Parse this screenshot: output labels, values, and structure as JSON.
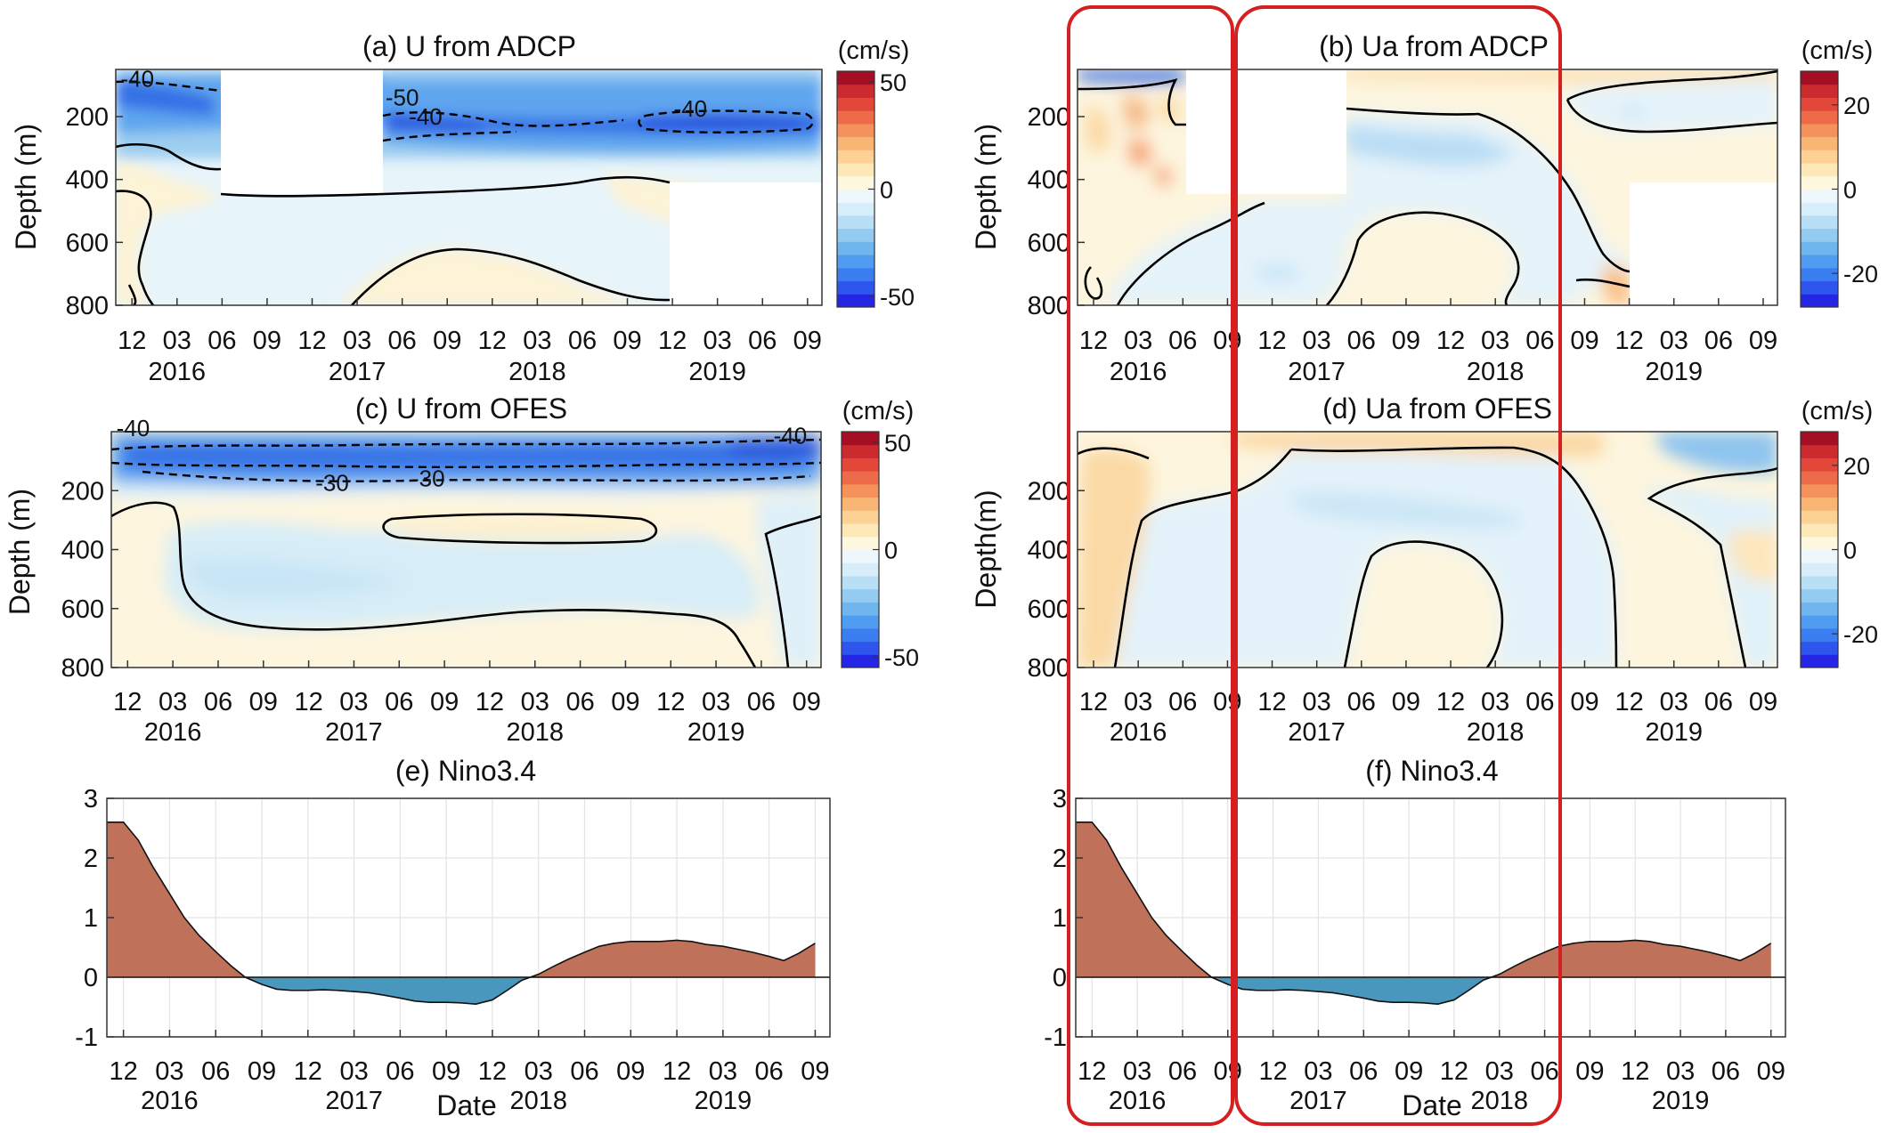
{
  "colors": {
    "positive_fill": "#c0715a",
    "negative_fill": "#4a97bd",
    "highlight_box": "#d42020",
    "zero_contour": "#000000",
    "colormap": [
      "#2525e6",
      "#2f55ef",
      "#3b7ef2",
      "#4f9cf0",
      "#6fb5ee",
      "#93cbf2",
      "#b8dff6",
      "#d7eefa",
      "#eef8fc",
      "#fdf8df",
      "#fde8b8",
      "#fcd193",
      "#f9b574",
      "#f5925c",
      "#ee6b49",
      "#e2473a",
      "#cb2a2f",
      "#a50f26"
    ]
  },
  "months_ticks": [
    "12",
    "03",
    "06",
    "09",
    "12",
    "03",
    "06",
    "09",
    "12",
    "03",
    "06",
    "09",
    "12",
    "03",
    "06",
    "09"
  ],
  "year_labels": [
    "2016",
    "2017",
    "2018",
    "2019"
  ],
  "shared_xlabel": "Date",
  "chart_data": [
    {
      "id": "a",
      "type": "heatmap",
      "title": "(a) U from ADCP",
      "ylabel": "Depth (m)",
      "yticks": [
        200,
        400,
        600,
        800
      ],
      "ylim": [
        50,
        800
      ],
      "colorbar_unit": "(cm/s)",
      "colorbar_ticks": [
        50,
        0,
        -50
      ],
      "colorbar_range": [
        -55,
        55
      ],
      "contour_labels": [
        {
          "text": "-40",
          "x": 2015.95,
          "depth": 105
        },
        {
          "text": "-50",
          "x": 2017.42,
          "depth": 165
        },
        {
          "text": "-40",
          "x": 2017.55,
          "depth": 225
        },
        {
          "text": "-40",
          "x": 2019.02,
          "depth": 200
        }
      ]
    },
    {
      "id": "b",
      "type": "heatmap",
      "title": "(b) Ua from ADCP",
      "ylabel": "Depth (m)",
      "yticks": [
        200,
        400,
        600,
        800
      ],
      "ylim": [
        50,
        800
      ],
      "colorbar_unit": "(cm/s)",
      "colorbar_ticks": [
        20,
        0,
        -20
      ],
      "colorbar_range": [
        -28,
        28
      ],
      "contour_labels": []
    },
    {
      "id": "c",
      "type": "heatmap",
      "title": "(c) U from OFES",
      "ylabel": "Depth (m)",
      "yticks": [
        200,
        400,
        600,
        800
      ],
      "ylim": [
        0,
        800
      ],
      "colorbar_unit": "(cm/s)",
      "colorbar_ticks": [
        50,
        0,
        -50
      ],
      "colorbar_range": [
        -55,
        55
      ],
      "contour_labels": [
        {
          "text": "-40",
          "x": 2015.95,
          "depth": 15
        },
        {
          "text": "-30",
          "x": 2017.05,
          "depth": 200
        },
        {
          "text": "-30",
          "x": 2017.58,
          "depth": 185
        },
        {
          "text": "-40",
          "x": 2019.58,
          "depth": 40
        }
      ]
    },
    {
      "id": "d",
      "type": "heatmap",
      "title": "(d) Ua from OFES",
      "ylabel": "Depth(m)",
      "yticks": [
        200,
        400,
        600,
        800
      ],
      "ylim": [
        0,
        800
      ],
      "colorbar_unit": "(cm/s)",
      "colorbar_ticks": [
        20,
        0,
        -20
      ],
      "colorbar_range": [
        -28,
        28
      ],
      "contour_labels": []
    },
    {
      "id": "e",
      "type": "area",
      "title": "(e) Nino3.4",
      "yticks": [
        3,
        2,
        1,
        0,
        -1
      ],
      "ylim": [
        -1,
        3
      ],
      "grid": true,
      "x": [
        2015.83,
        2015.92,
        2016.0,
        2016.08,
        2016.17,
        2016.25,
        2016.33,
        2016.42,
        2016.5,
        2016.58,
        2016.67,
        2016.75,
        2016.83,
        2016.92,
        2017.0,
        2017.08,
        2017.17,
        2017.25,
        2017.33,
        2017.42,
        2017.5,
        2017.58,
        2017.67,
        2017.75,
        2017.83,
        2017.92,
        2018.0,
        2018.08,
        2018.17,
        2018.25,
        2018.33,
        2018.42,
        2018.5,
        2018.58,
        2018.67,
        2018.75,
        2018.83,
        2018.92,
        2019.0,
        2019.08,
        2019.17,
        2019.25,
        2019.33,
        2019.42,
        2019.5,
        2019.58,
        2019.67
      ],
      "values": [
        2.6,
        2.6,
        2.3,
        1.85,
        1.4,
        1.0,
        0.7,
        0.43,
        0.2,
        0.0,
        -0.12,
        -0.2,
        -0.22,
        -0.22,
        -0.21,
        -0.22,
        -0.24,
        -0.26,
        -0.3,
        -0.35,
        -0.4,
        -0.42,
        -0.42,
        -0.43,
        -0.45,
        -0.38,
        -0.22,
        -0.05,
        0.05,
        0.18,
        0.3,
        0.42,
        0.52,
        0.57,
        0.6,
        0.6,
        0.6,
        0.62,
        0.6,
        0.55,
        0.52,
        0.47,
        0.42,
        0.35,
        0.28,
        0.4,
        0.57
      ]
    },
    {
      "id": "f",
      "type": "area",
      "title": "(f) Nino3.4",
      "yticks": [
        3,
        2,
        1,
        0,
        -1
      ],
      "ylim": [
        -1,
        3
      ],
      "grid": true,
      "x": [
        2015.83,
        2015.92,
        2016.0,
        2016.08,
        2016.17,
        2016.25,
        2016.33,
        2016.42,
        2016.5,
        2016.58,
        2016.67,
        2016.75,
        2016.83,
        2016.92,
        2017.0,
        2017.08,
        2017.17,
        2017.25,
        2017.33,
        2017.42,
        2017.5,
        2017.58,
        2017.67,
        2017.75,
        2017.83,
        2017.92,
        2018.0,
        2018.08,
        2018.17,
        2018.25,
        2018.33,
        2018.42,
        2018.5,
        2018.58,
        2018.67,
        2018.75,
        2018.83,
        2018.92,
        2019.0,
        2019.08,
        2019.17,
        2019.25,
        2019.33,
        2019.42,
        2019.5,
        2019.58,
        2019.67
      ],
      "values": [
        2.6,
        2.6,
        2.3,
        1.85,
        1.4,
        1.0,
        0.7,
        0.43,
        0.2,
        0.0,
        -0.12,
        -0.2,
        -0.22,
        -0.22,
        -0.21,
        -0.22,
        -0.24,
        -0.26,
        -0.3,
        -0.35,
        -0.4,
        -0.42,
        -0.42,
        -0.43,
        -0.45,
        -0.38,
        -0.22,
        -0.05,
        0.05,
        0.18,
        0.3,
        0.42,
        0.52,
        0.57,
        0.6,
        0.6,
        0.6,
        0.62,
        0.6,
        0.55,
        0.52,
        0.47,
        0.42,
        0.35,
        0.28,
        0.4,
        0.57
      ]
    }
  ]
}
